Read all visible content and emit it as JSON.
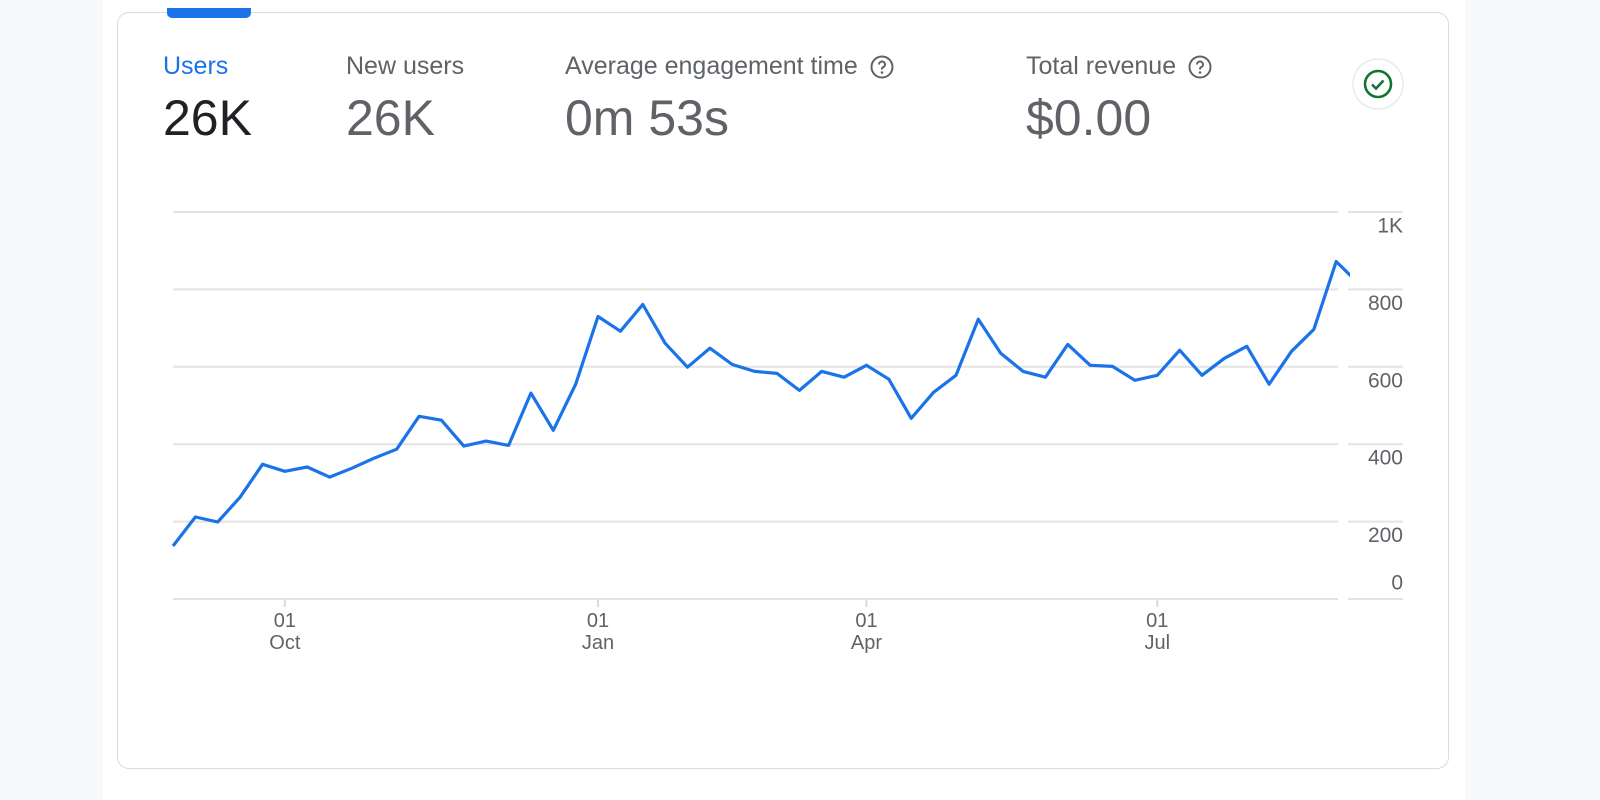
{
  "metrics": [
    {
      "label": "Users",
      "value": "26K"
    },
    {
      "label": "New users",
      "value": "26K"
    },
    {
      "label": "Average engagement time",
      "value": "0m 53s"
    },
    {
      "label": "Total revenue",
      "value": "$0.00"
    }
  ],
  "chart_data": {
    "type": "line",
    "color": "#1a73e8",
    "grid": true,
    "categories": [
      null,
      null,
      null,
      null,
      null,
      "01\nOct",
      null,
      null,
      null,
      null,
      null,
      null,
      null,
      null,
      null,
      null,
      null,
      null,
      null,
      "01\nJan",
      null,
      null,
      null,
      null,
      null,
      null,
      null,
      null,
      null,
      null,
      null,
      "01\nApr",
      null,
      null,
      null,
      null,
      null,
      null,
      null,
      null,
      null,
      null,
      null,
      null,
      "01\nJul",
      null,
      null,
      null,
      null,
      null,
      null,
      null,
      null,
      null
    ],
    "values": [
      137,
      212,
      199,
      263,
      348,
      330,
      341,
      315,
      338,
      364,
      387,
      472,
      462,
      395,
      408,
      397,
      532,
      436,
      555,
      730,
      692,
      761,
      661,
      599,
      648,
      606,
      588,
      583,
      539,
      588,
      573,
      604,
      568,
      467,
      534,
      578,
      723,
      635,
      588,
      573,
      658,
      604,
      601,
      565,
      578,
      643,
      578,
      622,
      653,
      555,
      640,
      697,
      872,
      815
    ],
    "ylim": [
      0,
      1000
    ],
    "yticks": [
      0,
      200,
      400,
      600,
      800,
      {
        "value": 1000,
        "label": "1K"
      }
    ]
  }
}
